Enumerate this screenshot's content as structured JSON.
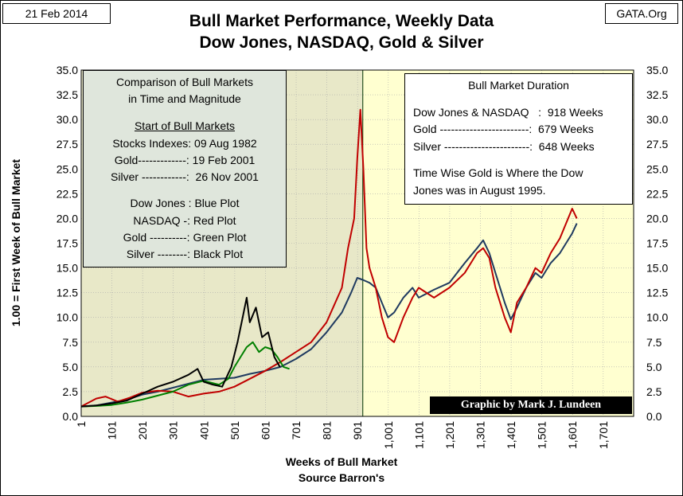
{
  "header": {
    "date": "21 Feb 2014",
    "source": "GATA.Org",
    "title_line1": "Bull Market Performance, Weekly Data",
    "title_line2": "Dow Jones, NASDAQ, Gold & Silver"
  },
  "comparison_box": {
    "line1": "Comparison of Bull Markets",
    "line2": "in Time and Magnitude",
    "heading": "Start of Bull Markets",
    "stocks": "Stocks Indexes: 09 Aug 1982",
    "gold": "Gold-------------: 19 Feb 2001",
    "silver": "Silver ------------:  26 Nov 2001",
    "dow": "Dow Jones : Blue Plot",
    "nasdaq": "NASDAQ -: Red Plot",
    "goldplot": "Gold ----------: Green Plot",
    "silverplot": "Silver --------: Black Plot"
  },
  "duration_box": {
    "title": "Bull Market Duration",
    "dow_nasdaq": "Dow Jones & NASDAQ   :  918 Weeks",
    "gold": "Gold ------------------------:  679 Weeks",
    "silver": "Silver -----------------------:  648 Weeks",
    "note1": "Time Wise Gold is Where the Dow",
    "note2": "Jones was in August 1995."
  },
  "credit": "Graphic by Mark J. Lundeen",
  "colors": {
    "dow": "#1f3a60",
    "nasdaq": "#c00000",
    "gold": "#008000",
    "silver": "#000000",
    "left_region": "#e8e8c8",
    "right_region": "#ffffd0",
    "comparison_box": "#dfe6dc"
  },
  "chart_data": {
    "type": "line",
    "title": "Bull Market Performance, Weekly Data",
    "subtitle": "Dow Jones, NASDAQ, Gold & Silver",
    "xlabel": "Weeks of Bull Market",
    "xlabel2": "Source Barron's",
    "ylabel": "1.00 = First Week of Bull Market",
    "xlim": [
      1,
      1800
    ],
    "ylim": [
      0,
      35
    ],
    "x_ticks": [
      "1",
      "101",
      "201",
      "301",
      "401",
      "501",
      "601",
      "701",
      "801",
      "901",
      "1,001",
      "1,101",
      "1,201",
      "1,301",
      "1,401",
      "1,501",
      "1,601",
      "1,701"
    ],
    "y_ticks": [
      "0.0",
      "2.5",
      "5.0",
      "7.5",
      "10.0",
      "12.5",
      "15.0",
      "17.5",
      "20.0",
      "22.5",
      "25.0",
      "27.5",
      "30.0",
      "32.5",
      "35.0"
    ],
    "y_tick_values": [
      0,
      2.5,
      5,
      7.5,
      10,
      12.5,
      15,
      17.5,
      20,
      22.5,
      25,
      27.5,
      30,
      32.5,
      35
    ],
    "shaded_until_week": 918,
    "grid": true,
    "series": [
      {
        "name": "Dow Jones",
        "color": "dow",
        "x": [
          1,
          50,
          100,
          150,
          200,
          250,
          300,
          350,
          400,
          450,
          500,
          550,
          600,
          650,
          700,
          750,
          800,
          850,
          880,
          900,
          918,
          940,
          960,
          980,
          1000,
          1020,
          1050,
          1080,
          1100,
          1150,
          1200,
          1250,
          1290,
          1310,
          1330,
          1350,
          1380,
          1400,
          1420,
          1450,
          1480,
          1500,
          1530,
          1560,
          1580,
          1600,
          1615
        ],
        "y": [
          1.0,
          1.1,
          1.4,
          1.7,
          2.2,
          2.5,
          2.9,
          3.3,
          3.7,
          3.8,
          3.9,
          4.3,
          4.6,
          5.0,
          5.8,
          6.8,
          8.5,
          10.5,
          12.5,
          14.0,
          13.8,
          13.5,
          13.0,
          11.5,
          10.0,
          10.5,
          12.0,
          13.0,
          12.0,
          12.8,
          13.5,
          15.5,
          17.0,
          17.8,
          16.5,
          14.5,
          11.5,
          9.8,
          11.0,
          13.0,
          14.5,
          14.0,
          15.5,
          16.5,
          17.5,
          18.5,
          19.5
        ]
      },
      {
        "name": "NASDAQ",
        "color": "nasdaq",
        "x": [
          1,
          50,
          80,
          120,
          160,
          200,
          250,
          300,
          350,
          400,
          450,
          500,
          550,
          600,
          650,
          700,
          750,
          800,
          850,
          870,
          890,
          900,
          910,
          915,
          920,
          930,
          940,
          960,
          980,
          1000,
          1020,
          1050,
          1080,
          1100,
          1150,
          1200,
          1250,
          1290,
          1310,
          1330,
          1350,
          1380,
          1400,
          1420,
          1450,
          1480,
          1500,
          1530,
          1560,
          1580,
          1600,
          1615
        ],
        "y": [
          1.0,
          1.8,
          2.0,
          1.5,
          1.9,
          2.4,
          2.6,
          2.5,
          2.0,
          2.3,
          2.5,
          3.0,
          3.8,
          4.6,
          5.5,
          6.5,
          7.5,
          9.5,
          13.0,
          17.0,
          20.0,
          26.0,
          31.0,
          28.0,
          25.0,
          17.0,
          15.0,
          13.0,
          10.0,
          8.0,
          7.5,
          10.0,
          12.0,
          13.0,
          12.0,
          13.0,
          14.5,
          16.5,
          17.0,
          16.0,
          13.0,
          10.0,
          8.5,
          11.5,
          13.0,
          15.0,
          14.5,
          16.5,
          18.0,
          19.5,
          21.0,
          20.0
        ]
      },
      {
        "name": "Gold",
        "color": "gold",
        "x": [
          1,
          50,
          100,
          150,
          200,
          250,
          300,
          350,
          400,
          450,
          480,
          500,
          520,
          540,
          560,
          580,
          600,
          620,
          640,
          660,
          679
        ],
        "y": [
          1.0,
          1.05,
          1.15,
          1.4,
          1.7,
          2.1,
          2.5,
          3.2,
          3.6,
          3.2,
          3.8,
          5.0,
          6.0,
          7.0,
          7.5,
          6.5,
          7.0,
          6.8,
          6.0,
          5.0,
          4.8
        ]
      },
      {
        "name": "Silver",
        "color": "silver",
        "x": [
          1,
          50,
          100,
          150,
          200,
          250,
          300,
          350,
          380,
          400,
          430,
          460,
          490,
          510,
          530,
          540,
          550,
          570,
          590,
          610,
          630,
          648
        ],
        "y": [
          1.0,
          1.1,
          1.3,
          1.6,
          2.3,
          3.0,
          3.5,
          4.2,
          4.8,
          3.5,
          3.2,
          3.0,
          5.0,
          7.5,
          10.5,
          12.0,
          9.5,
          11.0,
          8.0,
          8.5,
          6.0,
          5.0
        ]
      }
    ]
  }
}
